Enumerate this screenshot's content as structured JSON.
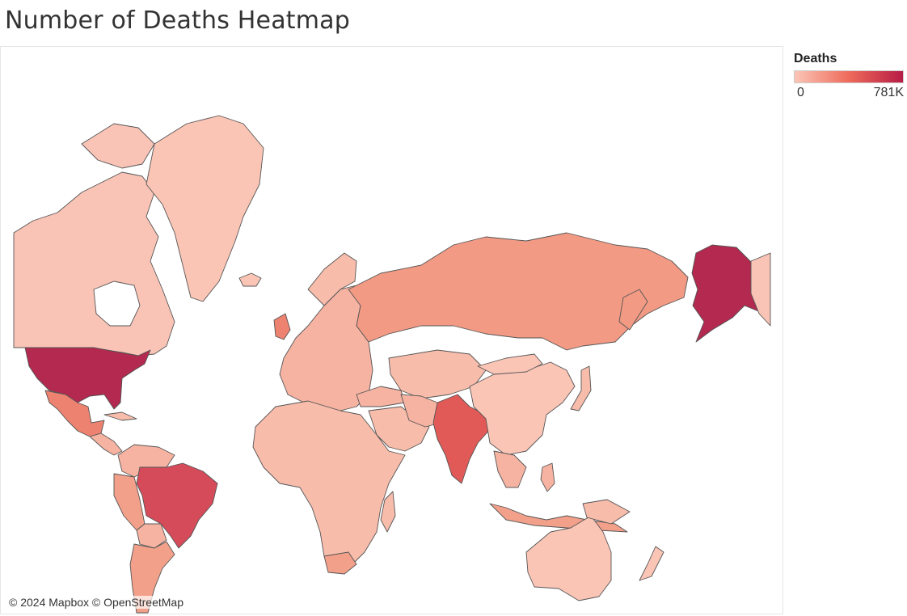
{
  "title": "Number of Deaths Heatmap",
  "legend": {
    "title": "Deaths",
    "min_label": "0",
    "max_label": "781K",
    "color_low": "#fbc5b6",
    "color_mid": "#ee6b5b",
    "color_high": "#b81c45"
  },
  "attribution": "© 2024 Mapbox © OpenStreetMap",
  "map": {
    "countries": [
      {
        "name": "United States",
        "level": 1.0,
        "color": "#b3294f"
      },
      {
        "name": "Brazil",
        "level": 0.8,
        "color": "#d64b5a"
      },
      {
        "name": "India",
        "level": 0.67,
        "color": "#e15a57"
      },
      {
        "name": "Mexico",
        "level": 0.42,
        "color": "#ee8270"
      },
      {
        "name": "Russia",
        "level": 0.28,
        "color": "#f29a84"
      },
      {
        "name": "Peru",
        "level": 0.3,
        "color": "#f2a08a"
      },
      {
        "name": "Canada",
        "level": 0.04,
        "color": "#f9c4b6"
      },
      {
        "name": "Greenland",
        "level": 0.0,
        "color": "#fbc5b6"
      },
      {
        "name": "Africa",
        "level": 0.05,
        "color": "#f8bcab"
      },
      {
        "name": "Europe",
        "level": 0.12,
        "color": "#f6b3a2"
      },
      {
        "name": "China",
        "level": 0.02,
        "color": "#fbc5b6"
      },
      {
        "name": "Australia",
        "level": 0.01,
        "color": "#fbc5b6"
      }
    ]
  }
}
